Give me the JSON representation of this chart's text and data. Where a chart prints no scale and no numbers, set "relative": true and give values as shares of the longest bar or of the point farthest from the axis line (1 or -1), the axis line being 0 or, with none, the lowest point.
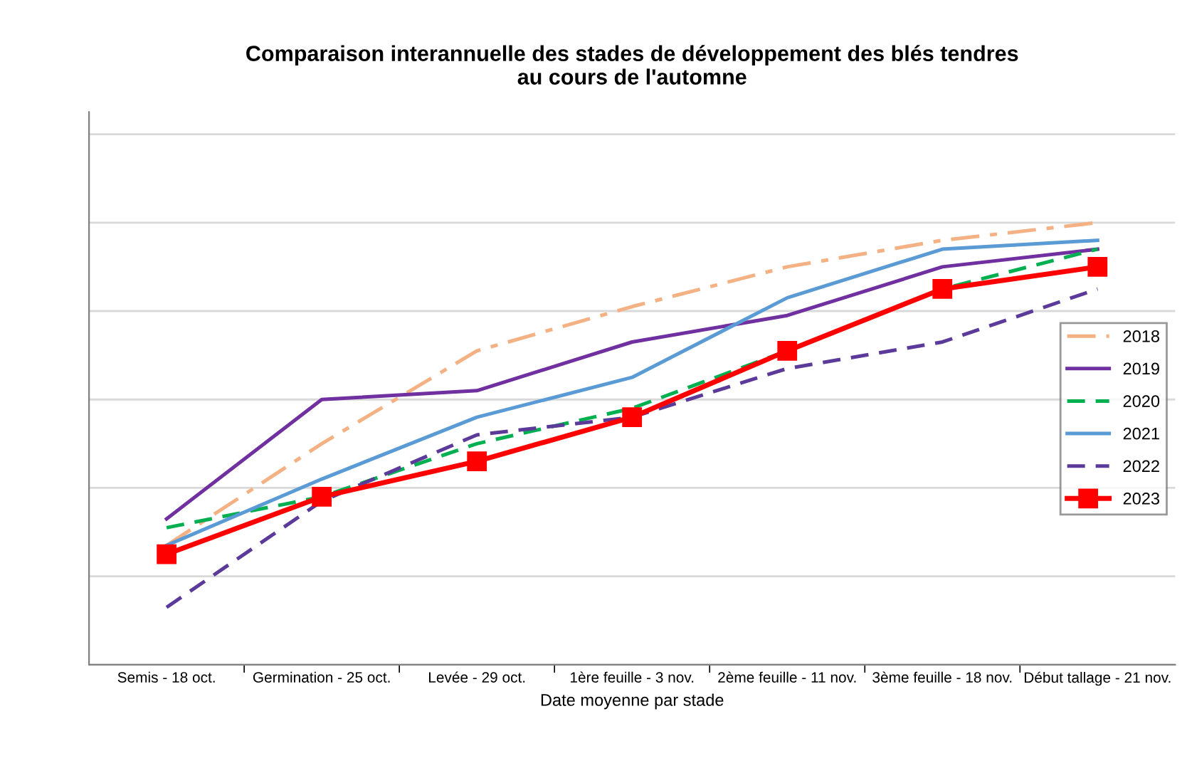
{
  "chart_data": {
    "type": "line",
    "title": "Comparaison interannuelle des stades de développement des blés tendres\nau cours de l'automne",
    "xlabel": "Date moyenne par stade",
    "categories": [
      "Semis - 18 oct.",
      "Germination - 25 oct.",
      "Levée - 29 oct.",
      "1ère feuille - 3 nov.",
      "2ème feuille - 11 nov.",
      "3ème feuille - 18 nov.",
      "Début tallage - 21 nov."
    ],
    "relative": true,
    "series": [
      {
        "name": "2018",
        "color": "#f4b183",
        "line_style": "dashdot",
        "marker": "none",
        "values": [
          0.27,
          0.5,
          0.71,
          0.81,
          0.9,
          0.96,
          1
        ]
      },
      {
        "name": "2019",
        "color": "#7030a0",
        "line_style": "solid",
        "marker": "none",
        "values": [
          0.33,
          0.6,
          0.62,
          0.73,
          0.79,
          0.9,
          0.94
        ]
      },
      {
        "name": "2020",
        "color": "#00b050",
        "line_style": "dashed",
        "marker": "none",
        "values": [
          0.31,
          0.38,
          0.5,
          0.58,
          0.71,
          0.85,
          0.94
        ]
      },
      {
        "name": "2021",
        "color": "#5b9bd5",
        "line_style": "solid",
        "marker": "none",
        "values": [
          0.27,
          0.42,
          0.56,
          0.65,
          0.83,
          0.94,
          0.96
        ]
      },
      {
        "name": "2022",
        "color": "#5b3a9a",
        "line_style": "dashed",
        "marker": "none",
        "values": [
          0.13,
          0.37,
          0.52,
          0.56,
          0.67,
          0.73,
          0.85
        ]
      },
      {
        "name": "2023",
        "color": "#ff0000",
        "line_style": "solid",
        "marker": "square",
        "values": [
          0.25,
          0.38,
          0.46,
          0.56,
          0.71,
          0.85,
          0.9
        ]
      }
    ],
    "grid": "y",
    "legend": "right"
  }
}
